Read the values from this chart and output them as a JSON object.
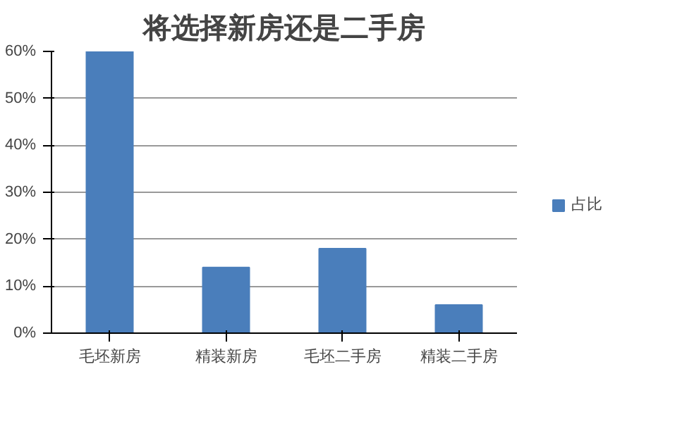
{
  "chart_data": {
    "type": "bar",
    "title": "将选择新房还是二手房",
    "categories": [
      "毛坯新房",
      "精装新房",
      "毛坯二手房",
      "精装二手房"
    ],
    "series": [
      {
        "name": "占比",
        "color": "#4a7ebb",
        "values": [
          60,
          14,
          18,
          6
        ]
      }
    ],
    "ylim": [
      0,
      60
    ],
    "yticks": [
      {
        "value": 0,
        "label": "0%"
      },
      {
        "value": 10,
        "label": "10%"
      },
      {
        "value": 20,
        "label": "20%"
      },
      {
        "value": 30,
        "label": "30%"
      },
      {
        "value": 40,
        "label": "40%"
      },
      {
        "value": 50,
        "label": "50%"
      },
      {
        "value": 60,
        "label": "60%"
      }
    ],
    "grid": "y",
    "legend": "right"
  }
}
